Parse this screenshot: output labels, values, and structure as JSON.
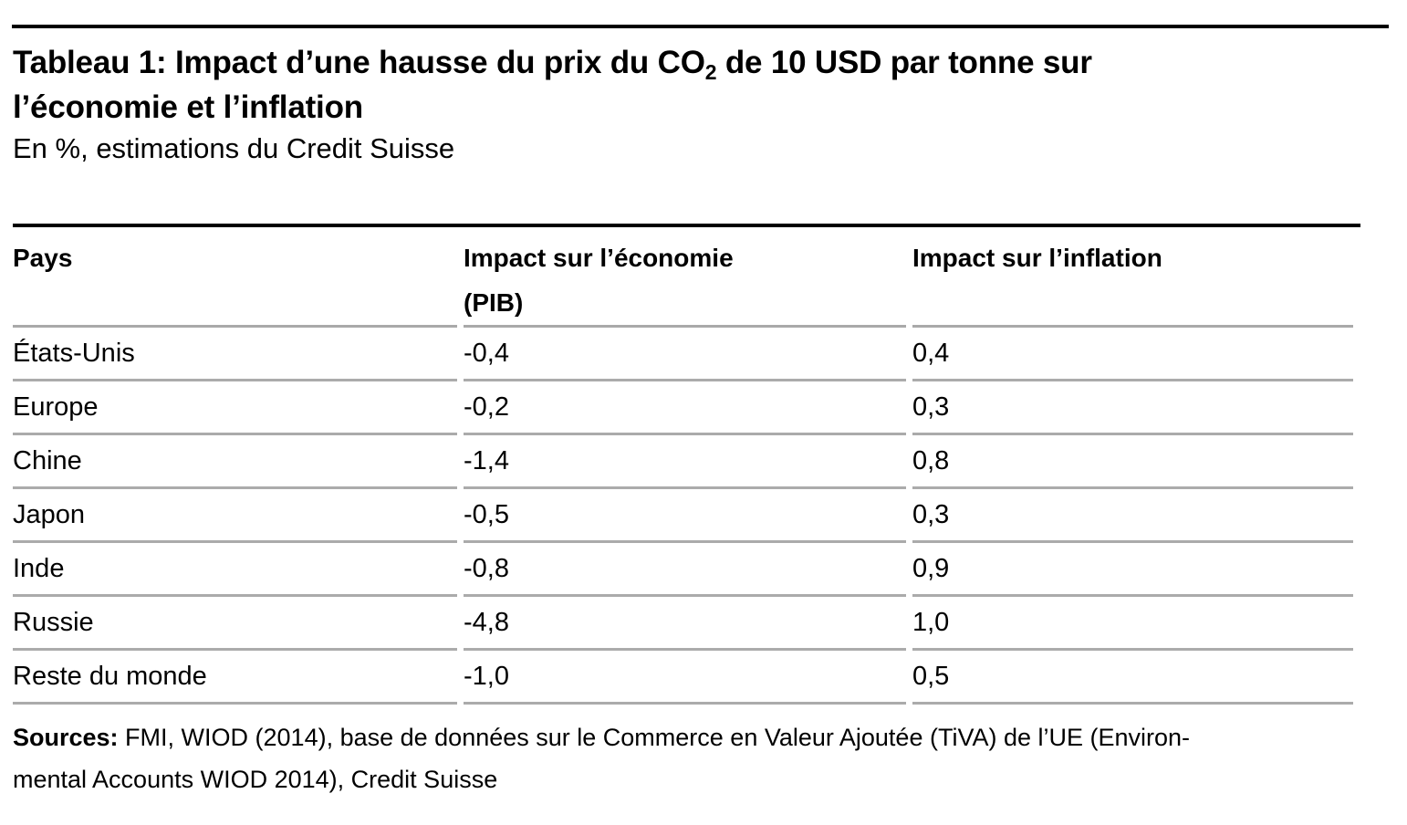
{
  "page": {
    "background_color": "#ffffff",
    "text_color": "#000000",
    "top_rule_color": "#000000",
    "table_top_border_color": "#000000",
    "row_separator_color": "#ababab"
  },
  "header": {
    "title_l1_a": "Tableau 1: Impact d’une hausse du prix du CO",
    "title_l1_sub": "2",
    "title_l1_b": " de 10 USD par tonne sur",
    "title_l2": "l’économie et l’inflation",
    "subtitle": "En %, estimations du Credit Suisse"
  },
  "table": {
    "col_pays": "Pays",
    "col_econ_l1": "Impact sur l’économie",
    "col_econ_l2": "(PIB)",
    "col_infl": "Impact sur l’inflation",
    "rows": [
      {
        "pays": "États-Unis",
        "economie": "-0,4",
        "inflation": "0,4"
      },
      {
        "pays": "Europe",
        "economie": "-0,2",
        "inflation": "0,3"
      },
      {
        "pays": "Chine",
        "economie": "-1,4",
        "inflation": "0,8"
      },
      {
        "pays": "Japon",
        "economie": "-0,5",
        "inflation": "0,3"
      },
      {
        "pays": "Inde",
        "economie": "-0,8",
        "inflation": "0,9"
      },
      {
        "pays": "Russie",
        "economie": "-4,8",
        "inflation": "1,0"
      },
      {
        "pays": "Reste du monde",
        "economie": "-1,0",
        "inflation": "0,5"
      }
    ]
  },
  "sources": {
    "label": "Sources:",
    "line1_rest": " FMI, WIOD (2014), base de données sur le Commerce en Valeur Ajoutée (TiVA) de l’UE (Environ-",
    "line2": "mental Accounts WIOD 2014), Credit Suisse"
  },
  "chart_data": {
    "type": "table",
    "title": "Tableau 1: Impact d’une hausse du prix du CO2 de 10 USD par tonne sur l’économie et l’inflation",
    "subtitle": "En %, estimations du Credit Suisse",
    "unit": "%",
    "columns": [
      "Pays",
      "Impact sur l’économie (PIB)",
      "Impact sur l’inflation"
    ],
    "rows": [
      [
        "États-Unis",
        -0.4,
        0.4
      ],
      [
        "Europe",
        -0.2,
        0.3
      ],
      [
        "Chine",
        -1.4,
        0.8
      ],
      [
        "Japon",
        -0.5,
        0.3
      ],
      [
        "Inde",
        -0.8,
        0.9
      ],
      [
        "Russie",
        -4.8,
        1.0
      ],
      [
        "Reste du monde",
        -1.0,
        0.5
      ]
    ]
  }
}
